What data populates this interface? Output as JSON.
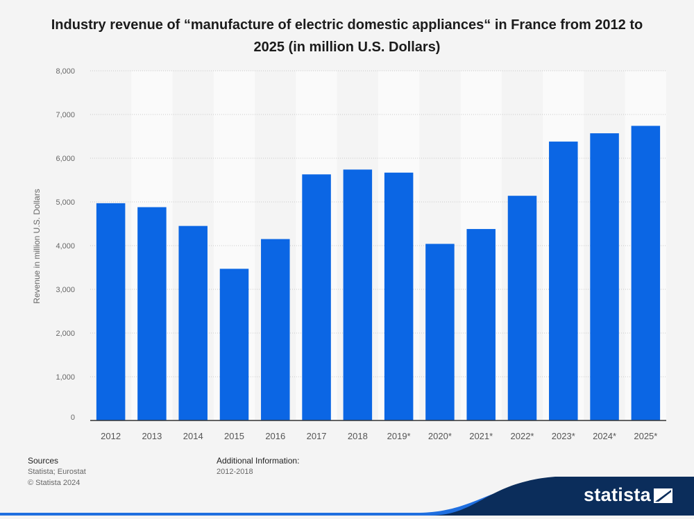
{
  "chart_data": {
    "type": "bar",
    "title": "Industry revenue of “manufacture of electric domestic appliances“ in France from 2012 to 2025 (in million U.S. Dollars)",
    "ylabel": "Revenue in million U.S. Dollars",
    "xlabel": "",
    "categories": [
      "2012",
      "2013",
      "2014",
      "2015",
      "2016",
      "2017",
      "2018",
      "2019*",
      "2020*",
      "2021*",
      "2022*",
      "2023*",
      "2024*",
      "2025*"
    ],
    "values": [
      4970,
      4880,
      4450,
      3470,
      4150,
      5630,
      5740,
      5670,
      4040,
      4380,
      5140,
      6380,
      6570,
      6740
    ],
    "ylim": [
      0,
      8000
    ],
    "yticks": [
      "0",
      "1,000",
      "2,000",
      "3,000",
      "4,000",
      "5,000",
      "6,000",
      "7,000",
      "8,000"
    ],
    "ytick_values": [
      0,
      1000,
      2000,
      3000,
      4000,
      5000,
      6000,
      7000,
      8000
    ],
    "grid": true,
    "bar_color": "#0b66e4"
  },
  "footer": {
    "sources_label": "Sources",
    "sources_text": "Statista; Eurostat",
    "copyright": "© Statista 2024",
    "additional_label": "Additional Information:",
    "additional_text": "2012-2018"
  },
  "brand": {
    "name": "statista",
    "color": "#0b2d5b",
    "accent": "#1f6fe0"
  }
}
